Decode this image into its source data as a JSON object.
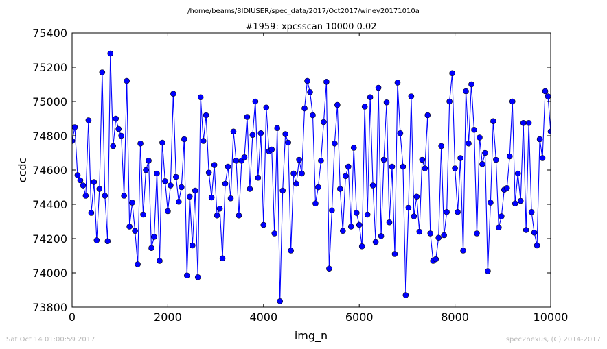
{
  "figure": {
    "path_title": "/home/beams/8IDIUSER/spec_data/2017/Oct2017/winey20171010a",
    "timestamp": "Sat Oct 14 01:00:59 2017",
    "credit": "spec2nexus, (C) 2014-2017"
  },
  "colors": {
    "series": "#0000ff",
    "axes": "#000000",
    "footer": "#b8b8b8"
  },
  "chart_data": {
    "type": "line",
    "title": "#1959: xpcsscan 10000 0.02",
    "xlabel": "img_n",
    "ylabel": "ccdc",
    "xlim": [
      0,
      10000
    ],
    "ylim": [
      73800,
      75400
    ],
    "xticks": [
      0,
      2000,
      4000,
      6000,
      8000,
      10000
    ],
    "yticks": [
      73800,
      74000,
      74200,
      74400,
      74600,
      74800,
      75000,
      75200,
      75400
    ],
    "grid": false,
    "legend": "none",
    "marker": "circle",
    "series": [
      {
        "values": [
          74770,
          74850,
          74570,
          74540,
          74510,
          74450,
          74890,
          74350,
          74530,
          74190,
          74490,
          75170,
          74450,
          74185,
          75280,
          74740,
          74900,
          74840,
          74800,
          74450,
          75120,
          74270,
          74410,
          74245,
          74050,
          74755,
          74340,
          74600,
          74655,
          74145,
          74210,
          74580,
          74070,
          74760,
          74535,
          74360,
          74510,
          75045,
          74560,
          74415,
          74500,
          74780,
          73985,
          74445,
          74160,
          74480,
          73975,
          75025,
          74770,
          74920,
          74585,
          74440,
          74630,
          74335,
          74375,
          74085,
          74520,
          74620,
          74435,
          74825,
          74655,
          74335,
          74655,
          74675,
          74910,
          74490,
          74805,
          75000,
          74555,
          74815,
          74280,
          74965,
          74710,
          74720,
          74230,
          74845,
          73835,
          74480,
          74810,
          74760,
          74130,
          74580,
          74520,
          74660,
          74580,
          74960,
          75120,
          75055,
          74920,
          74405,
          74500,
          74655,
          74880,
          75115,
          74025,
          74365,
          74755,
          74980,
          74490,
          74245,
          74565,
          74620,
          74270,
          74730,
          74350,
          74280,
          74155,
          74970,
          74340,
          75025,
          74510,
          74180,
          75080,
          74215,
          74660,
          74995,
          74295,
          74620,
          74110,
          75110,
          74815,
          74620,
          73870,
          74380,
          75030,
          74330,
          74445,
          74240,
          74660,
          74610,
          74920,
          74230,
          74070,
          74080,
          74205,
          74740,
          74220,
          74355,
          75000,
          75165,
          74610,
          74355,
          74670,
          74130,
          75060,
          74755,
          75100,
          74835,
          74230,
          74790,
          74635,
          74700,
          74010,
          74410,
          74885,
          74660,
          74265,
          74330,
          74485,
          74495,
          74680,
          75000,
          74405,
          74580,
          74420,
          74875,
          74250,
          74875,
          74355,
          74235,
          74160,
          74780,
          74670,
          75060,
          75030,
          74825
        ]
      }
    ]
  }
}
